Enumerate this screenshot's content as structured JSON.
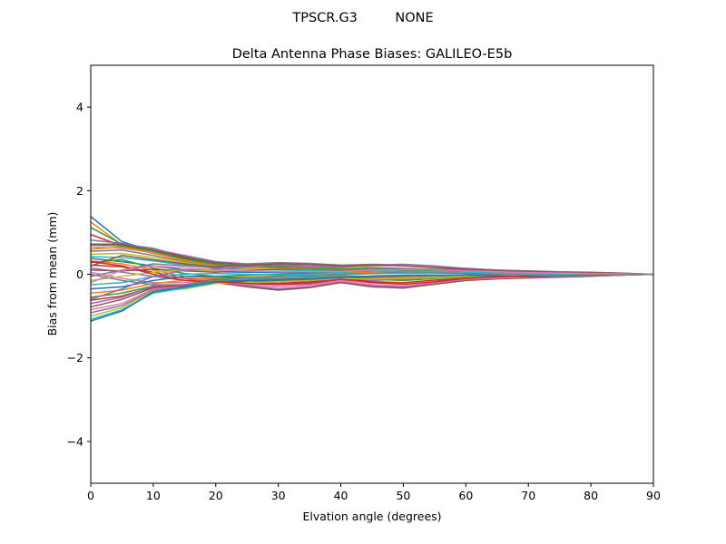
{
  "chart_data": {
    "type": "line",
    "suptitle": "TPSCR.G3         NONE",
    "title": "Delta Antenna Phase Biases: GALILEO-E5b",
    "xlabel": "Elvation angle (degrees)",
    "ylabel": "Bias from mean (mm)",
    "xlim": [
      0,
      90
    ],
    "ylim": [
      -5,
      5
    ],
    "xticks": [
      0,
      10,
      20,
      30,
      40,
      50,
      60,
      70,
      80,
      90
    ],
    "yticks": [
      -4,
      -2,
      0,
      2,
      4
    ],
    "ytick_labels": [
      "−4",
      "−2",
      "0",
      "2",
      "4"
    ],
    "grid": false,
    "x": [
      0,
      5,
      10,
      15,
      20,
      25,
      30,
      35,
      40,
      45,
      50,
      55,
      60,
      65,
      70,
      75,
      80,
      85,
      90
    ],
    "colors": [
      "#1f77b4",
      "#ff7f0e",
      "#2ca02c",
      "#d62728",
      "#9467bd",
      "#8c564b",
      "#e377c2",
      "#7f7f7f",
      "#bcbd22",
      "#17becf"
    ],
    "series": [
      {
        "values": [
          1.38,
          0.78,
          0.55,
          0.4,
          0.28,
          0.22,
          0.18,
          0.16,
          0.14,
          0.12,
          0.11,
          0.1,
          0.08,
          0.06,
          0.05,
          0.04,
          0.03,
          0.02,
          0.0
        ]
      },
      {
        "values": [
          1.25,
          0.7,
          0.5,
          0.35,
          0.25,
          0.2,
          0.16,
          0.14,
          0.12,
          0.11,
          0.1,
          0.09,
          0.07,
          0.06,
          0.05,
          0.04,
          0.03,
          0.02,
          0.0
        ]
      },
      {
        "values": [
          1.12,
          0.72,
          0.62,
          0.42,
          0.28,
          0.24,
          0.2,
          0.17,
          0.15,
          0.13,
          0.12,
          0.1,
          0.08,
          0.07,
          0.05,
          0.04,
          0.03,
          0.02,
          0.0
        ]
      },
      {
        "values": [
          0.95,
          0.68,
          0.58,
          0.4,
          0.26,
          0.22,
          0.18,
          0.16,
          0.14,
          0.13,
          0.12,
          0.1,
          0.08,
          0.07,
          0.06,
          0.05,
          0.04,
          0.02,
          0.0
        ]
      },
      {
        "values": [
          0.82,
          0.74,
          0.6,
          0.45,
          0.3,
          0.25,
          0.22,
          0.2,
          0.18,
          0.16,
          0.14,
          0.12,
          0.1,
          0.08,
          0.06,
          0.05,
          0.04,
          0.02,
          0.0
        ]
      },
      {
        "values": [
          0.72,
          0.72,
          0.56,
          0.38,
          0.27,
          0.23,
          0.2,
          0.18,
          0.16,
          0.15,
          0.13,
          0.11,
          0.09,
          0.07,
          0.06,
          0.05,
          0.04,
          0.02,
          0.0
        ]
      },
      {
        "values": [
          0.65,
          0.62,
          0.52,
          0.35,
          0.24,
          0.21,
          0.18,
          0.17,
          0.15,
          0.14,
          0.12,
          0.1,
          0.08,
          0.07,
          0.05,
          0.04,
          0.03,
          0.02,
          0.0
        ]
      },
      {
        "values": [
          0.55,
          0.58,
          0.45,
          0.3,
          0.2,
          0.18,
          0.16,
          0.15,
          0.14,
          0.13,
          0.12,
          0.1,
          0.09,
          0.07,
          0.06,
          0.05,
          0.04,
          0.02,
          0.0
        ]
      },
      {
        "values": [
          0.48,
          0.5,
          0.4,
          0.28,
          0.18,
          0.15,
          0.14,
          0.13,
          0.12,
          0.12,
          0.11,
          0.09,
          0.08,
          0.07,
          0.06,
          0.05,
          0.04,
          0.02,
          0.0
        ]
      },
      {
        "values": [
          0.42,
          0.4,
          0.32,
          0.22,
          0.14,
          0.12,
          0.1,
          0.09,
          0.08,
          0.08,
          0.07,
          0.06,
          0.05,
          0.04,
          0.03,
          0.03,
          0.02,
          0.01,
          0.0
        ]
      },
      {
        "values": [
          0.38,
          0.3,
          0.2,
          0.1,
          0.06,
          0.05,
          0.04,
          0.04,
          0.05,
          0.06,
          0.06,
          0.05,
          0.04,
          0.03,
          0.02,
          0.02,
          0.01,
          0.01,
          0.0
        ]
      },
      {
        "values": [
          0.32,
          0.25,
          0.1,
          -0.05,
          -0.08,
          -0.06,
          -0.05,
          -0.03,
          0.02,
          0.05,
          0.08,
          0.07,
          0.05,
          0.03,
          0.02,
          0.01,
          0.01,
          0.0,
          0.0
        ]
      },
      {
        "values": [
          0.28,
          0.35,
          0.15,
          0.02,
          -0.05,
          -0.02,
          0.0,
          0.02,
          0.05,
          0.08,
          0.1,
          0.09,
          0.07,
          0.05,
          0.03,
          0.02,
          0.01,
          0.01,
          0.0
        ]
      },
      {
        "values": [
          0.22,
          0.18,
          0.05,
          -0.1,
          -0.12,
          -0.15,
          -0.18,
          -0.15,
          -0.1,
          -0.08,
          -0.06,
          -0.04,
          -0.02,
          0.0,
          0.01,
          0.01,
          0.01,
          0.0,
          0.0
        ]
      },
      {
        "values": [
          0.15,
          0.05,
          -0.05,
          -0.15,
          -0.1,
          -0.18,
          -0.22,
          -0.2,
          -0.12,
          -0.15,
          -0.12,
          -0.08,
          -0.05,
          -0.03,
          -0.02,
          -0.02,
          -0.01,
          -0.01,
          0.0
        ]
      },
      {
        "values": [
          0.1,
          0.08,
          0.12,
          0.08,
          0.05,
          0.1,
          0.12,
          0.12,
          0.1,
          0.12,
          0.13,
          0.12,
          0.1,
          0.08,
          0.06,
          0.05,
          0.04,
          0.02,
          0.0
        ]
      },
      {
        "values": [
          0.05,
          -0.1,
          -0.2,
          -0.2,
          -0.12,
          -0.25,
          -0.3,
          -0.25,
          -0.15,
          -0.25,
          -0.28,
          -0.2,
          -0.12,
          -0.08,
          -0.06,
          -0.05,
          -0.04,
          -0.02,
          0.0
        ]
      },
      {
        "values": [
          -0.05,
          0.1,
          0.25,
          0.2,
          0.15,
          0.25,
          0.28,
          0.26,
          0.22,
          0.24,
          0.22,
          0.18,
          0.14,
          0.1,
          0.08,
          0.06,
          0.05,
          0.03,
          0.0
        ]
      },
      {
        "values": [
          -0.15,
          -0.05,
          0.05,
          0.1,
          0.08,
          0.12,
          0.15,
          0.15,
          0.14,
          0.2,
          0.22,
          0.18,
          0.12,
          0.08,
          0.05,
          0.04,
          0.03,
          0.02,
          0.0
        ]
      },
      {
        "values": [
          -0.25,
          -0.2,
          -0.05,
          0.0,
          0.02,
          0.0,
          -0.02,
          0.0,
          0.05,
          0.08,
          0.1,
          0.09,
          0.06,
          0.04,
          0.02,
          0.01,
          0.01,
          0.0,
          0.0
        ]
      },
      {
        "values": [
          -0.35,
          -0.3,
          -0.15,
          -0.05,
          -0.05,
          -0.1,
          -0.12,
          -0.1,
          -0.05,
          -0.05,
          -0.04,
          -0.03,
          -0.02,
          -0.01,
          -0.01,
          -0.01,
          0.0,
          0.0,
          0.0
        ]
      },
      {
        "values": [
          -0.45,
          -0.38,
          -0.22,
          -0.15,
          -0.08,
          -0.12,
          -0.15,
          -0.12,
          -0.08,
          -0.1,
          -0.08,
          -0.05,
          -0.04,
          -0.03,
          -0.02,
          -0.02,
          -0.01,
          0.0,
          0.0
        ]
      },
      {
        "values": [
          -0.55,
          -0.45,
          -0.28,
          -0.25,
          -0.12,
          -0.08,
          -0.1,
          -0.08,
          -0.05,
          -0.12,
          -0.15,
          -0.1,
          -0.07,
          -0.05,
          -0.03,
          -0.02,
          -0.02,
          -0.01,
          0.0
        ]
      },
      {
        "values": [
          -0.62,
          -0.52,
          -0.3,
          -0.28,
          -0.15,
          -0.2,
          -0.22,
          -0.18,
          -0.1,
          -0.18,
          -0.2,
          -0.14,
          -0.1,
          -0.07,
          -0.05,
          -0.04,
          -0.03,
          -0.01,
          0.0
        ]
      },
      {
        "values": [
          -0.7,
          -0.55,
          -0.28,
          -0.25,
          -0.18,
          -0.28,
          -0.35,
          -0.3,
          -0.18,
          -0.28,
          -0.3,
          -0.22,
          -0.14,
          -0.1,
          -0.08,
          -0.06,
          -0.04,
          -0.02,
          0.0
        ]
      },
      {
        "values": [
          -0.78,
          -0.6,
          -0.32,
          -0.3,
          -0.2,
          -0.3,
          -0.38,
          -0.32,
          -0.2,
          -0.3,
          -0.33,
          -0.24,
          -0.15,
          -0.11,
          -0.09,
          -0.07,
          -0.05,
          -0.02,
          0.0
        ]
      },
      {
        "values": [
          -0.85,
          -0.7,
          -0.35,
          -0.3,
          -0.18,
          -0.25,
          -0.3,
          -0.26,
          -0.16,
          -0.25,
          -0.28,
          -0.2,
          -0.12,
          -0.09,
          -0.07,
          -0.06,
          -0.04,
          -0.02,
          0.0
        ]
      },
      {
        "values": [
          -0.92,
          -0.75,
          -0.38,
          -0.32,
          -0.16,
          -0.12,
          -0.1,
          -0.08,
          -0.05,
          -0.06,
          -0.05,
          -0.04,
          -0.03,
          -0.02,
          -0.02,
          -0.01,
          -0.01,
          0.0,
          0.0
        ]
      },
      {
        "values": [
          -1.0,
          -0.8,
          -0.4,
          -0.35,
          -0.22,
          -0.2,
          -0.18,
          -0.15,
          -0.1,
          -0.12,
          -0.1,
          -0.08,
          -0.05,
          -0.04,
          -0.03,
          -0.02,
          -0.02,
          -0.01,
          0.0
        ]
      },
      {
        "values": [
          -1.08,
          -0.85,
          -0.45,
          -0.33,
          -0.2,
          -0.1,
          -0.06,
          -0.05,
          -0.02,
          0.02,
          0.04,
          0.04,
          0.03,
          0.02,
          0.01,
          0.01,
          0.01,
          0.0,
          0.0
        ]
      },
      {
        "values": [
          -1.12,
          -0.88,
          -0.42,
          -0.3,
          -0.18,
          -0.15,
          -0.14,
          -0.12,
          -0.08,
          -0.04,
          -0.02,
          -0.02,
          -0.02,
          -0.04,
          -0.06,
          -0.05,
          -0.04,
          -0.02,
          0.0
        ]
      },
      {
        "values": [
          0.6,
          0.65,
          0.5,
          0.33,
          0.22,
          0.18,
          0.15,
          0.13,
          0.12,
          0.12,
          0.11,
          0.1,
          0.08,
          0.06,
          0.05,
          0.04,
          0.03,
          0.02,
          0.0
        ]
      },
      {
        "values": [
          0.7,
          0.68,
          0.55,
          0.36,
          0.24,
          0.2,
          0.17,
          0.15,
          0.13,
          0.12,
          0.11,
          0.1,
          0.08,
          0.06,
          0.05,
          0.04,
          0.03,
          0.02,
          0.0
        ]
      },
      {
        "values": [
          0.3,
          0.2,
          0.0,
          -0.15,
          -0.18,
          -0.22,
          -0.25,
          -0.22,
          -0.12,
          -0.2,
          -0.24,
          -0.18,
          -0.1,
          -0.06,
          -0.04,
          -0.03,
          -0.02,
          -0.01,
          0.0
        ]
      },
      {
        "values": [
          -0.6,
          -0.35,
          -0.05,
          0.1,
          0.12,
          0.18,
          0.22,
          0.2,
          0.18,
          0.22,
          0.24,
          0.2,
          0.14,
          0.1,
          0.07,
          0.05,
          0.04,
          0.02,
          0.0
        ]
      },
      {
        "values": [
          0.2,
          0.45,
          0.35,
          0.25,
          0.18,
          0.22,
          0.25,
          0.24,
          0.2,
          0.22,
          0.2,
          0.16,
          0.12,
          0.09,
          0.07,
          0.05,
          0.04,
          0.02,
          0.0
        ]
      },
      {
        "values": [
          -0.2,
          0.1,
          0.2,
          0.15,
          0.1,
          0.08,
          0.06,
          0.06,
          0.07,
          0.1,
          0.12,
          0.11,
          0.08,
          0.06,
          0.04,
          0.03,
          0.02,
          0.01,
          0.0
        ]
      },
      {
        "values": [
          0.0,
          -0.15,
          -0.25,
          -0.25,
          -0.15,
          -0.08,
          -0.05,
          -0.03,
          0.0,
          0.02,
          0.03,
          0.03,
          0.02,
          0.0,
          -0.02,
          -0.03,
          -0.03,
          -0.02,
          0.0
        ]
      }
    ]
  }
}
